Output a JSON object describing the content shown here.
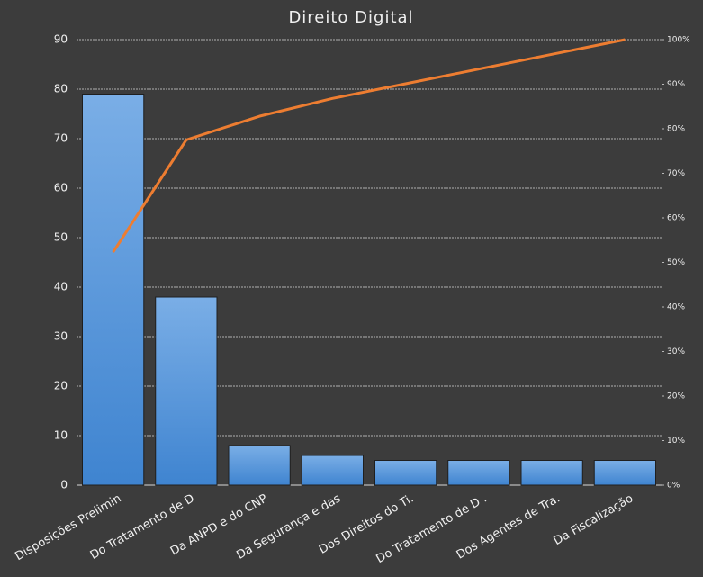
{
  "chart_data": {
    "type": "pareto",
    "title": "Direito Digital",
    "categories": [
      "Disposições Prelimin",
      "Do Tratamento de D",
      "Da ANPD e do CNP",
      "Da Segurança e das",
      "Dos Direitos do Ti.",
      "Do Tratamento de D .",
      "Dos Agentes de Tra.",
      "Da Fiscalização"
    ],
    "series": [
      {
        "type": "bar",
        "color": "#4a8fd8",
        "values": [
          79,
          38,
          8,
          6,
          5,
          5,
          5,
          5
        ]
      },
      {
        "type": "line",
        "axis": "y2",
        "color": "#ed7d31",
        "values": [
          52.3,
          77.5,
          82.8,
          86.8,
          90.1,
          93.4,
          96.7,
          100
        ]
      }
    ],
    "ylim": [
      0,
      90
    ],
    "yticks": [
      0,
      10,
      20,
      30,
      40,
      50,
      60,
      70,
      80,
      90
    ],
    "y2lim": [
      0,
      100
    ],
    "y2ticks": [
      {
        "value": 0,
        "label": "0%"
      },
      {
        "value": 10,
        "label": "10%"
      },
      {
        "value": 20,
        "label": "20%"
      },
      {
        "value": 30,
        "label": "30%"
      },
      {
        "value": 40,
        "label": "40%"
      },
      {
        "value": 50,
        "label": "50%"
      },
      {
        "value": 60,
        "label": "60%"
      },
      {
        "value": 70,
        "label": "70%"
      },
      {
        "value": 80,
        "label": "80%"
      },
      {
        "value": 90,
        "label": "90%"
      },
      {
        "value": 100,
        "label": "100%"
      }
    ],
    "grid": true
  }
}
